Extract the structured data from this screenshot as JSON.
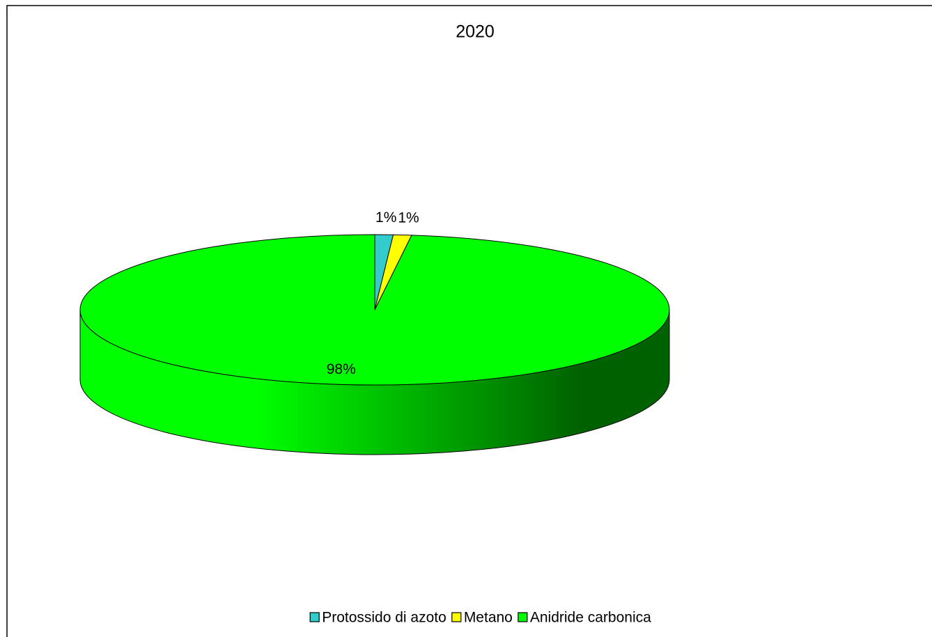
{
  "chart_data": {
    "type": "pie",
    "title": "2020",
    "categories": [
      "Protossido di azoto",
      "Metano",
      "Anidride carbonica"
    ],
    "values": [
      1,
      1,
      98
    ],
    "value_labels": [
      "1%",
      "1%",
      "98%"
    ],
    "colors": [
      "#33cccc",
      "#ffff00",
      "#00ff00"
    ]
  }
}
